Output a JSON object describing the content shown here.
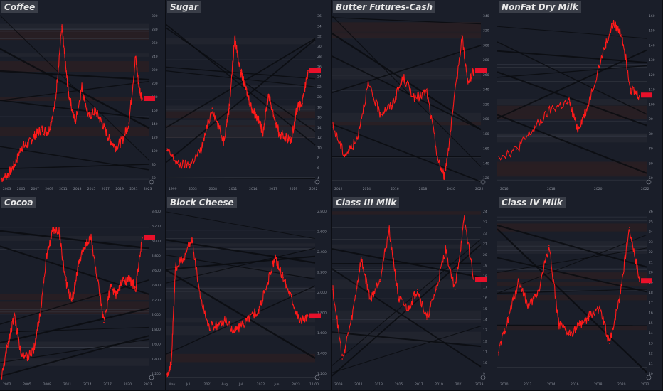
{
  "colors": {
    "background": "#131722",
    "panel": "#1a1e29",
    "series": "#ff1a1a",
    "label_bg": "#e8102a",
    "axis_text": "#8a8f9a"
  },
  "chart_data": [
    {
      "type": "line",
      "title": "Coffee",
      "price_label": "",
      "ylim": [
        40,
        320
      ],
      "y_ticks": [
        "60",
        "80",
        "100",
        "120",
        "140",
        "160",
        "180",
        "200",
        "220",
        "240",
        "260",
        "280",
        "300"
      ],
      "x_ticks": [
        "2003",
        "2005",
        "2007",
        "2009",
        "2011",
        "2013",
        "2015",
        "2017",
        "2019",
        "2021",
        "2023"
      ],
      "x": [
        2002,
        2003,
        2004,
        2005,
        2006,
        2007,
        2008,
        2009,
        2010,
        2011,
        2011.5,
        2012,
        2013,
        2014,
        2015,
        2016,
        2017,
        2018,
        2019,
        2020,
        2021,
        2022,
        2022.5,
        2023
      ],
      "values": [
        48,
        55,
        72,
        100,
        105,
        120,
        130,
        125,
        170,
        300,
        240,
        190,
        140,
        200,
        150,
        160,
        140,
        115,
        100,
        110,
        140,
        250,
        200,
        180
      ]
    },
    {
      "type": "line",
      "title": "Sugar",
      "price_label": "",
      "ylim": [
        2,
        38
      ],
      "y_ticks": [
        "4",
        "6",
        "8",
        "10",
        "12",
        "14",
        "16",
        "18",
        "20",
        "22",
        "24",
        "26",
        "28",
        "30",
        "32",
        "34",
        "36"
      ],
      "x_ticks": [
        "1999",
        "2003",
        "2008",
        "2011",
        "2014",
        "2017",
        "2019",
        "2022"
      ],
      "x": [
        1998,
        2000,
        2002,
        2004,
        2006,
        2008,
        2009,
        2010,
        2011,
        2012,
        2013,
        2014,
        2015,
        2016,
        2017,
        2018,
        2019,
        2020,
        2021,
        2022,
        2023
      ],
      "values": [
        9,
        6,
        6,
        9,
        18,
        11,
        18,
        33,
        26,
        22,
        18,
        16,
        13,
        21,
        16,
        12,
        12,
        11,
        18,
        19,
        26
      ]
    },
    {
      "type": "line",
      "title": "Butter Futures-Cash",
      "price_label": "",
      "ylim": [
        110,
        350
      ],
      "y_ticks": [
        "120",
        "140",
        "160",
        "180",
        "200",
        "220",
        "240",
        "260",
        "280",
        "300",
        "320",
        "340"
      ],
      "x_ticks": [
        "2012",
        "2014",
        "2016",
        "2018",
        "2020",
        "2022"
      ],
      "x": [
        2011,
        2012,
        2013,
        2014,
        2015,
        2016,
        2017,
        2018,
        2019,
        2020,
        2020.5,
        2021,
        2022,
        2022.5,
        2023
      ],
      "values": [
        190,
        150,
        170,
        250,
        210,
        220,
        260,
        230,
        240,
        140,
        120,
        180,
        320,
        250,
        270
      ]
    },
    {
      "type": "line",
      "title": "NonFat Dry Milk",
      "price_label": "",
      "ylim": [
        40,
        165
      ],
      "y_ticks": [
        "50",
        "60",
        "70",
        "80",
        "90",
        "100",
        "110",
        "120",
        "130",
        "140",
        "150",
        "160"
      ],
      "x_ticks": [
        "2016",
        "2018",
        "2020",
        "2022"
      ],
      "x": [
        2015,
        2016,
        2017,
        2018,
        2019,
        2019.5,
        2020,
        2021,
        2021.5,
        2022,
        2022.5,
        2023
      ],
      "values": [
        60,
        65,
        80,
        95,
        100,
        80,
        95,
        140,
        158,
        150,
        110,
        105
      ]
    },
    {
      "type": "line",
      "title": "Cocoa",
      "price_label": "",
      "ylim": [
        1100,
        3500
      ],
      "y_ticks": [
        "1,200",
        "1,400",
        "1,600",
        "1,800",
        "2,000",
        "2,200",
        "2,400",
        "2,600",
        "2,800",
        "3,000",
        "3,200",
        "3,400"
      ],
      "x_ticks": [
        "2002",
        "2005",
        "2008",
        "2011",
        "2014",
        "2017",
        "2020",
        "2023"
      ],
      "x": [
        2001,
        2002,
        2003,
        2004,
        2005,
        2006,
        2007,
        2008,
        2009,
        2010,
        2011,
        2012,
        2013,
        2014,
        2015,
        2016,
        2017,
        2018,
        2019,
        2020,
        2021,
        2022,
        2023
      ],
      "values": [
        1100,
        1600,
        2000,
        1500,
        1400,
        1500,
        2000,
        2800,
        3200,
        3200,
        2500,
        2200,
        2700,
        3000,
        3100,
        2500,
        1900,
        2400,
        2300,
        2500,
        2500,
        2400,
        3100
      ]
    },
    {
      "type": "line",
      "title": "Block Cheese",
      "price_label": "",
      "ylim": [
        1.15,
        2.9
      ],
      "y_ticks": [
        "1.200",
        "1.400",
        "1.600",
        "1.800",
        "2.000",
        "2.200",
        "2.400",
        "2.600",
        "2.800"
      ],
      "x_ticks": [
        "May",
        "Jul",
        "2021",
        "Aug",
        "Jul",
        "2022",
        "Jun",
        "2023",
        "11:00"
      ],
      "x": [
        0,
        0.5,
        1,
        2,
        3,
        4,
        5,
        6,
        7,
        8,
        9,
        10,
        11,
        12,
        13,
        14,
        15,
        16,
        17
      ],
      "values": [
        1.2,
        1.3,
        2.3,
        2.4,
        2.6,
        2.0,
        1.7,
        1.7,
        1.75,
        1.65,
        1.7,
        1.8,
        1.85,
        2.1,
        2.4,
        2.2,
        2.0,
        1.75,
        1.8
      ]
    },
    {
      "type": "line",
      "title": "Class III Milk",
      "price_label": "",
      "ylim": [
        8,
        25
      ],
      "y_ticks": [
        "9",
        "10",
        "11",
        "12",
        "13",
        "14",
        "15",
        "16",
        "17",
        "18",
        "19",
        "20",
        "21",
        "22",
        "23",
        "24"
      ],
      "x_ticks": [
        "2009",
        "2011",
        "2013",
        "2015",
        "2017",
        "2019",
        "2021",
        "2023"
      ],
      "x": [
        2008,
        2009,
        2010,
        2011,
        2012,
        2013,
        2014,
        2015,
        2016,
        2017,
        2018,
        2019,
        2020,
        2021,
        2022,
        2023
      ],
      "values": [
        17,
        10,
        14,
        20,
        16,
        18,
        23,
        16,
        15,
        17,
        14,
        17,
        21,
        17,
        24,
        18
      ]
    },
    {
      "type": "line",
      "title": "Class IV Milk",
      "price_label": "",
      "ylim": [
        8,
        27
      ],
      "y_ticks": [
        "10",
        "11",
        "12",
        "13",
        "14",
        "15",
        "16",
        "17",
        "18",
        "19",
        "20",
        "21",
        "22",
        "23",
        "24",
        "25",
        "26"
      ],
      "x_ticks": [
        "2010",
        "2012",
        "2014",
        "2016",
        "2018",
        "2020",
        "2022"
      ],
      "x": [
        2009,
        2010,
        2011,
        2012,
        2013,
        2014,
        2015,
        2016,
        2017,
        2018,
        2019,
        2020,
        2021,
        2022,
        2023
      ],
      "values": [
        11,
        15,
        19,
        16,
        18,
        23,
        14,
        13,
        14,
        15,
        16,
        12,
        17,
        25,
        19
      ]
    }
  ]
}
